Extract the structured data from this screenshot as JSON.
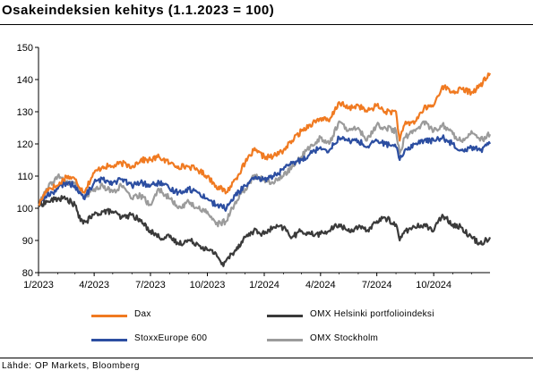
{
  "title": "Osakeindeksien kehitys (1.1.2023 = 100)",
  "source": "Lähde: OP Markets, Bloomberg",
  "chart_data": {
    "type": "line",
    "x_ticks": [
      "1/2023",
      "4/2023",
      "7/2023",
      "10/2023",
      "1/2024",
      "4/2024",
      "7/2024",
      "10/2024"
    ],
    "xlim": [
      "2023-01-01",
      "2024-12-31"
    ],
    "ylim": [
      80,
      150
    ],
    "y_ticks": [
      "80",
      "90",
      "100",
      "110",
      "120",
      "130",
      "140",
      "150"
    ],
    "grid": false,
    "legend": "bottom",
    "series": [
      {
        "name": "Dax",
        "color": "#f07a21",
        "x": [
          "2023-01-01",
          "2023-01-15",
          "2023-02-01",
          "2023-02-15",
          "2023-03-01",
          "2023-03-15",
          "2023-04-01",
          "2023-04-15",
          "2023-05-01",
          "2023-05-15",
          "2023-06-01",
          "2023-06-15",
          "2023-07-01",
          "2023-07-15",
          "2023-08-01",
          "2023-08-15",
          "2023-09-01",
          "2023-09-15",
          "2023-10-01",
          "2023-10-15",
          "2023-11-01",
          "2023-11-15",
          "2023-12-01",
          "2023-12-15",
          "2024-01-01",
          "2024-01-15",
          "2024-02-01",
          "2024-02-15",
          "2024-03-01",
          "2024-03-15",
          "2024-04-01",
          "2024-04-15",
          "2024-05-01",
          "2024-05-15",
          "2024-06-01",
          "2024-06-15",
          "2024-07-01",
          "2024-07-15",
          "2024-08-01",
          "2024-08-07",
          "2024-08-15",
          "2024-09-01",
          "2024-09-15",
          "2024-10-01",
          "2024-10-15",
          "2024-11-01",
          "2024-11-15",
          "2024-12-01",
          "2024-12-15",
          "2024-12-31"
        ],
        "values": [
          101,
          106,
          107,
          110,
          109,
          105,
          111,
          113,
          113,
          114,
          113,
          115,
          115,
          116,
          114,
          113,
          113,
          112,
          110,
          107,
          105,
          109,
          114,
          118,
          116,
          116,
          118,
          121,
          124,
          126,
          128,
          127,
          133,
          131,
          132,
          130,
          132,
          130,
          130,
          121,
          126,
          127,
          131,
          132,
          138,
          136,
          137,
          136,
          138,
          142
        ]
      },
      {
        "name": "OMX Helsinki portfolioindeksi",
        "color": "#3a3a3a",
        "x": [
          "2023-01-01",
          "2023-01-15",
          "2023-02-01",
          "2023-02-15",
          "2023-03-01",
          "2023-03-10",
          "2023-03-20",
          "2023-04-01",
          "2023-04-15",
          "2023-05-01",
          "2023-05-15",
          "2023-06-01",
          "2023-06-15",
          "2023-07-01",
          "2023-07-15",
          "2023-08-01",
          "2023-08-15",
          "2023-09-01",
          "2023-09-15",
          "2023-10-01",
          "2023-10-15",
          "2023-10-27",
          "2023-11-01",
          "2023-11-15",
          "2023-12-01",
          "2023-12-15",
          "2024-01-01",
          "2024-01-15",
          "2024-02-01",
          "2024-02-15",
          "2024-03-01",
          "2024-03-15",
          "2024-04-01",
          "2024-04-15",
          "2024-05-01",
          "2024-05-15",
          "2024-06-01",
          "2024-06-15",
          "2024-07-01",
          "2024-07-15",
          "2024-08-01",
          "2024-08-07",
          "2024-08-15",
          "2024-09-01",
          "2024-09-15",
          "2024-10-01",
          "2024-10-15",
          "2024-11-01",
          "2024-11-15",
          "2024-12-01",
          "2024-12-15",
          "2024-12-31"
        ],
        "values": [
          101,
          102,
          103,
          103,
          101,
          96,
          96,
          98,
          99,
          99,
          97,
          98,
          96,
          93,
          91,
          91,
          89,
          90,
          89,
          87,
          86,
          82,
          84,
          87,
          91,
          93,
          92,
          94,
          94,
          91,
          93,
          92,
          92,
          93,
          95,
          93,
          94,
          93,
          96,
          97,
          95,
          90,
          93,
          94,
          95,
          93,
          98,
          95,
          94,
          91,
          89,
          91
        ]
      },
      {
        "name": "StoxxEurope 600",
        "color": "#2c4ea1",
        "x": [
          "2023-01-01",
          "2023-01-15",
          "2023-02-01",
          "2023-02-15",
          "2023-03-01",
          "2023-03-15",
          "2023-04-01",
          "2023-04-15",
          "2023-05-01",
          "2023-05-15",
          "2023-06-01",
          "2023-06-15",
          "2023-07-01",
          "2023-07-15",
          "2023-08-01",
          "2023-08-15",
          "2023-09-01",
          "2023-09-15",
          "2023-10-01",
          "2023-10-15",
          "2023-11-01",
          "2023-11-15",
          "2023-12-01",
          "2023-12-15",
          "2024-01-01",
          "2024-01-15",
          "2024-02-01",
          "2024-02-15",
          "2024-03-01",
          "2024-03-15",
          "2024-04-01",
          "2024-04-15",
          "2024-05-01",
          "2024-05-15",
          "2024-06-01",
          "2024-06-15",
          "2024-07-01",
          "2024-07-15",
          "2024-08-01",
          "2024-08-07",
          "2024-08-15",
          "2024-09-01",
          "2024-09-15",
          "2024-10-01",
          "2024-10-15",
          "2024-11-01",
          "2024-11-15",
          "2024-12-01",
          "2024-12-15",
          "2024-12-31"
        ],
        "values": [
          101,
          104,
          106,
          108,
          107,
          103,
          108,
          109,
          108,
          109,
          107,
          108,
          107,
          108,
          106,
          105,
          106,
          105,
          103,
          101,
          100,
          104,
          107,
          109,
          109,
          110,
          112,
          114,
          115,
          117,
          119,
          118,
          122,
          121,
          121,
          119,
          121,
          120,
          119,
          115,
          118,
          120,
          121,
          121,
          122,
          120,
          118,
          119,
          118,
          120
        ]
      },
      {
        "name": "OMX Stockholm",
        "color": "#9b9b9b",
        "x": [
          "2023-01-01",
          "2023-01-15",
          "2023-02-01",
          "2023-02-15",
          "2023-03-01",
          "2023-03-15",
          "2023-04-01",
          "2023-04-15",
          "2023-05-01",
          "2023-05-15",
          "2023-06-01",
          "2023-06-15",
          "2023-07-01",
          "2023-07-15",
          "2023-08-01",
          "2023-08-15",
          "2023-09-01",
          "2023-09-15",
          "2023-10-01",
          "2023-10-15",
          "2023-11-01",
          "2023-11-15",
          "2023-12-01",
          "2023-12-15",
          "2024-01-01",
          "2024-01-15",
          "2024-02-01",
          "2024-02-15",
          "2024-03-01",
          "2024-03-15",
          "2024-04-01",
          "2024-04-15",
          "2024-05-01",
          "2024-05-15",
          "2024-06-01",
          "2024-06-15",
          "2024-07-01",
          "2024-07-15",
          "2024-08-01",
          "2024-08-07",
          "2024-08-15",
          "2024-09-01",
          "2024-09-15",
          "2024-10-01",
          "2024-10-15",
          "2024-11-01",
          "2024-11-15",
          "2024-12-01",
          "2024-12-15",
          "2024-12-31"
        ],
        "values": [
          101,
          106,
          110,
          108,
          108,
          103,
          106,
          107,
          105,
          107,
          103,
          104,
          101,
          106,
          103,
          100,
          102,
          100,
          99,
          95,
          96,
          102,
          106,
          110,
          109,
          108,
          110,
          113,
          116,
          119,
          122,
          120,
          127,
          124,
          125,
          121,
          126,
          125,
          124,
          117,
          122,
          124,
          127,
          124,
          126,
          123,
          121,
          124,
          121,
          123
        ]
      }
    ]
  }
}
